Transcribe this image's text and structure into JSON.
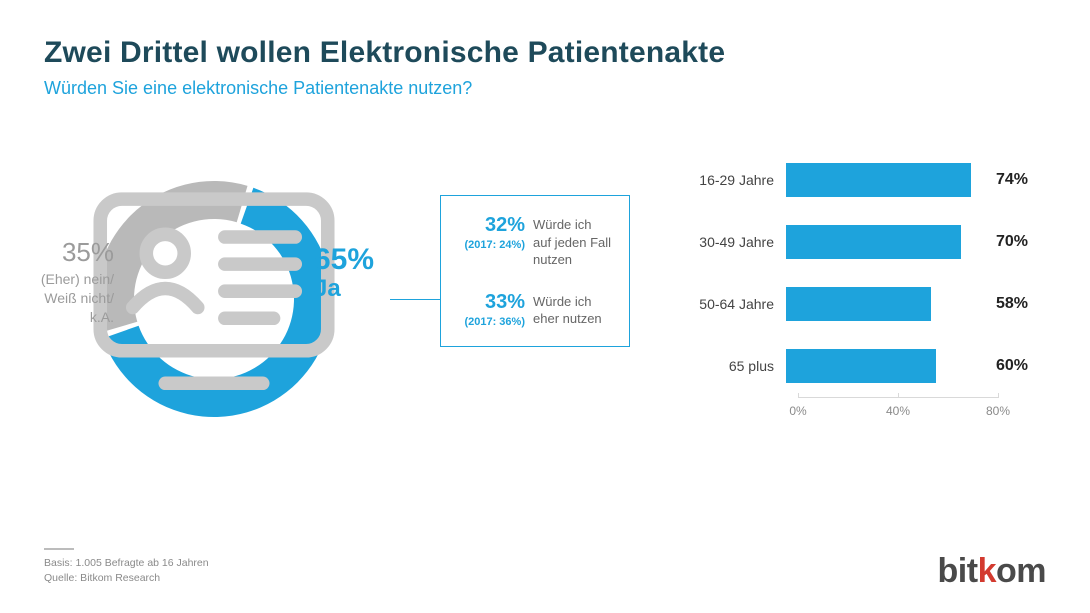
{
  "colors": {
    "title": "#1e4a5a",
    "accent": "#1ea3dc",
    "grey": "#b9b9b9",
    "icon_grey": "#c9c9c9",
    "box_border": "#1ea3dc",
    "bar_fill": "#1ea3dc",
    "logo_dark": "#4a4a4a",
    "logo_red": "#d33a2f"
  },
  "header": {
    "title": "Zwei Drittel wollen Elektronische Patientenakte",
    "subtitle": "Würden Sie eine elektronische Patientenakte nutzen?"
  },
  "donut": {
    "type": "donut",
    "yes_pct": 65,
    "no_pct": 35,
    "yes_label": "Ja",
    "yes_value_text": "65%",
    "no_value_text": "35%",
    "no_label_lines": [
      "(Eher) nein/",
      "Weiß nicht/",
      "k.A."
    ],
    "ring_thickness": 38,
    "start_angle_deg": -72,
    "yes_color": "#1ea3dc",
    "no_color": "#b9b9b9",
    "gap_deg": 3
  },
  "breakdown": {
    "items": [
      {
        "pct": "32%",
        "prev": "(2017: 24%)",
        "text_lines": [
          "Würde ich",
          "auf jeden Fall",
          "nutzen"
        ]
      },
      {
        "pct": "33%",
        "prev": "(2017: 36%)",
        "text_lines": [
          "Würde ich",
          "eher nutzen"
        ]
      }
    ]
  },
  "bar_chart": {
    "type": "bar",
    "x_max": 80,
    "ticks": [
      0,
      40,
      80
    ],
    "tick_labels": [
      "0%",
      "40%",
      "80%"
    ],
    "bars": [
      {
        "label": "16-29 Jahre",
        "value": 74,
        "value_text": "74%"
      },
      {
        "label": "30-49 Jahre",
        "value": 70,
        "value_text": "70%"
      },
      {
        "label": "50-64 Jahre",
        "value": 58,
        "value_text": "58%"
      },
      {
        "label": "65 plus",
        "value": 60,
        "value_text": "60%"
      }
    ]
  },
  "footer": {
    "line1": "Basis: 1.005 Befragte ab 16 Jahren",
    "line2": "Quelle: Bitkom Research"
  },
  "logo": {
    "prefix": "bit",
    "k": "k",
    "suffix": "om"
  }
}
